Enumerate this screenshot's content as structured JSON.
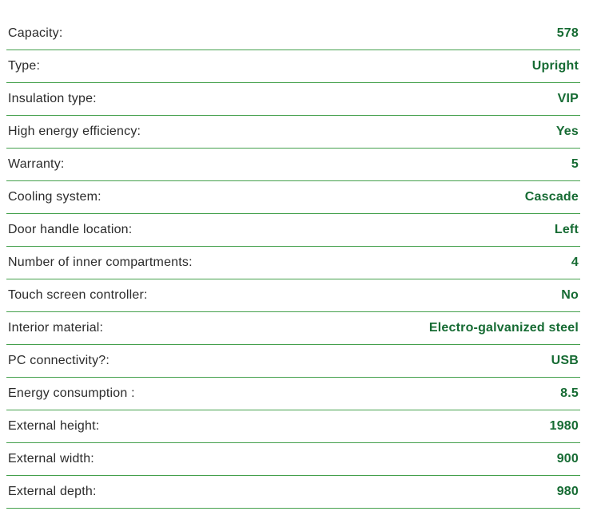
{
  "spec_table": {
    "rows": [
      {
        "label": "Capacity:",
        "value": "578"
      },
      {
        "label": "Type:",
        "value": "Upright"
      },
      {
        "label": "Insulation type:",
        "value": "VIP"
      },
      {
        "label": "High energy efficiency:",
        "value": "Yes"
      },
      {
        "label": "Warranty:",
        "value": "5"
      },
      {
        "label": "Cooling system:",
        "value": "Cascade"
      },
      {
        "label": "Door handle location:",
        "value": "Left"
      },
      {
        "label": "Number of inner compartments:",
        "value": "4"
      },
      {
        "label": "Touch screen controller:",
        "value": "No"
      },
      {
        "label": "Interior material:",
        "value": "Electro-galvanized steel"
      },
      {
        "label": "PC connectivity?:",
        "value": "USB"
      },
      {
        "label": "Energy consumption :",
        "value": "8.5"
      },
      {
        "label": "External height:",
        "value": "1980"
      },
      {
        "label": "External width:",
        "value": "900"
      },
      {
        "label": "External depth:",
        "value": "980"
      }
    ],
    "colors": {
      "divider_green": "#44a04c",
      "value_green": "#166b33",
      "label_dark": "#2b2b2b",
      "background": "#ffffff"
    }
  }
}
